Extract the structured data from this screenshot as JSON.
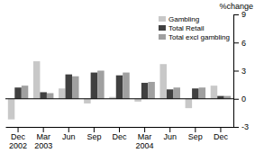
{
  "chart_data": {
    "type": "bar",
    "y_label": "%change",
    "categories": [
      "Dec\n2002",
      "Mar\n2003",
      "Jun",
      "Sep",
      "Dec",
      "Mar\n2004",
      "Jun",
      "Sep",
      "Dec"
    ],
    "series": [
      {
        "name": "Gambling",
        "color": "#c8c8c8",
        "values": [
          -2.2,
          4.0,
          1.1,
          -0.5,
          0.2,
          -0.3,
          3.7,
          -1.0,
          1.4
        ]
      },
      {
        "name": "Total Retail",
        "color": "#404040",
        "values": [
          1.2,
          0.7,
          2.6,
          2.8,
          2.5,
          1.7,
          1.0,
          1.1,
          0.3
        ]
      },
      {
        "name": "Total excl gambling",
        "color": "#a0a0a0",
        "values": [
          1.4,
          0.6,
          2.4,
          3.0,
          2.8,
          1.8,
          1.2,
          1.2,
          0.3
        ]
      }
    ],
    "ylim": [
      -3,
      9
    ],
    "yticks": [
      -3,
      0,
      3,
      6,
      9
    ],
    "grid": false,
    "legend": "upper right"
  }
}
